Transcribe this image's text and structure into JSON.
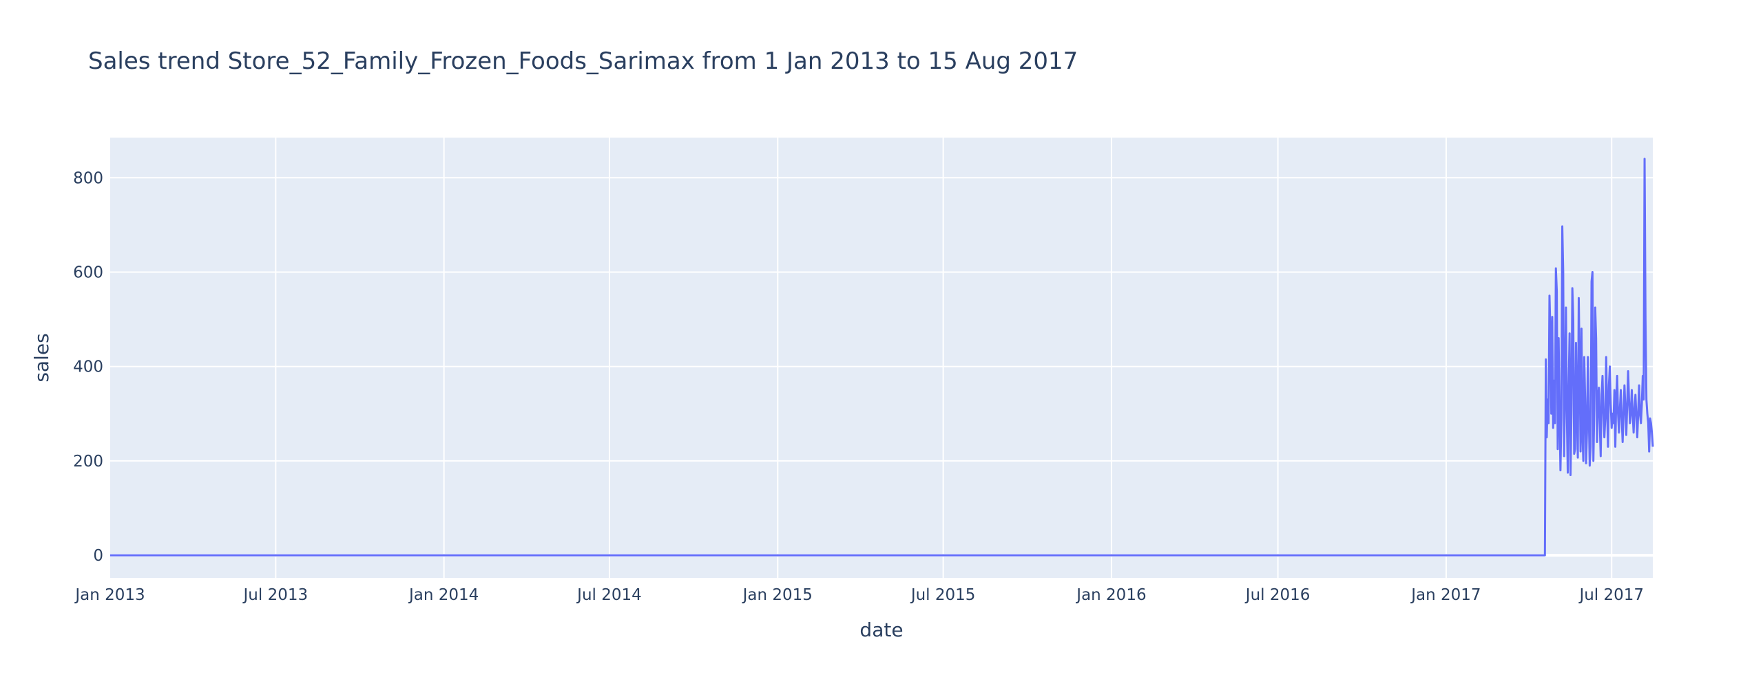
{
  "chart_data": {
    "type": "line",
    "title": "Sales trend Store_52_Family_Frozen_Foods_Sarimax from  1 Jan 2013 to 15 Aug 2017",
    "xlabel": "date",
    "ylabel": "sales",
    "x_range": [
      "2013-01-01",
      "2017-08-15"
    ],
    "ylim": [
      -48,
      885
    ],
    "y_ticks": [
      0,
      200,
      400,
      600,
      800
    ],
    "y_tick_labels": [
      "0",
      "200",
      "400",
      "600",
      "800"
    ],
    "x_ticks": [
      "2013-01-01",
      "2013-07-01",
      "2014-01-01",
      "2014-07-01",
      "2015-01-01",
      "2015-07-01",
      "2016-01-01",
      "2016-07-01",
      "2017-01-01",
      "2017-07-01"
    ],
    "x_tick_labels": [
      "Jan 2013",
      "Jul 2013",
      "Jan 2014",
      "Jul 2014",
      "Jan 2015",
      "Jul 2015",
      "Jan 2016",
      "Jul 2016",
      "Jan 2017",
      "Jul 2017"
    ],
    "grid": true,
    "line_color": "#636efa",
    "background_color": "#e5ecf6",
    "series": [
      {
        "x": [
          "2013-01-01",
          "2017-04-19",
          "2017-04-20",
          "2017-04-21",
          "2017-04-22",
          "2017-04-23",
          "2017-04-24",
          "2017-04-25",
          "2017-04-26",
          "2017-04-27",
          "2017-04-28",
          "2017-04-29",
          "2017-04-30",
          "2017-05-01",
          "2017-05-02",
          "2017-05-03",
          "2017-05-04",
          "2017-05-05",
          "2017-05-06",
          "2017-05-07",
          "2017-05-08",
          "2017-05-09",
          "2017-05-10",
          "2017-05-11",
          "2017-05-12",
          "2017-05-13",
          "2017-05-14",
          "2017-05-15",
          "2017-05-16",
          "2017-05-17",
          "2017-05-18",
          "2017-05-19",
          "2017-05-20",
          "2017-05-21",
          "2017-05-22",
          "2017-05-23",
          "2017-05-24",
          "2017-05-25",
          "2017-05-26",
          "2017-05-27",
          "2017-05-28",
          "2017-05-29",
          "2017-05-30",
          "2017-05-31",
          "2017-06-01",
          "2017-06-02",
          "2017-06-03",
          "2017-06-04",
          "2017-06-05",
          "2017-06-06",
          "2017-06-07",
          "2017-06-08",
          "2017-06-09",
          "2017-06-10",
          "2017-06-11",
          "2017-06-12",
          "2017-06-13",
          "2017-06-14",
          "2017-06-15",
          "2017-06-16",
          "2017-06-17",
          "2017-06-18",
          "2017-06-19",
          "2017-06-20",
          "2017-06-21",
          "2017-06-22",
          "2017-06-23",
          "2017-06-24",
          "2017-06-25",
          "2017-06-26",
          "2017-06-27",
          "2017-06-28",
          "2017-06-29",
          "2017-06-30",
          "2017-07-01",
          "2017-07-02",
          "2017-07-03",
          "2017-07-04",
          "2017-07-05",
          "2017-07-06",
          "2017-07-07",
          "2017-07-08",
          "2017-07-09",
          "2017-07-10",
          "2017-07-11",
          "2017-07-12",
          "2017-07-13",
          "2017-07-14",
          "2017-07-15",
          "2017-07-16",
          "2017-07-17",
          "2017-07-18",
          "2017-07-19",
          "2017-07-20",
          "2017-07-21",
          "2017-07-22",
          "2017-07-23",
          "2017-07-24",
          "2017-07-25",
          "2017-07-26",
          "2017-07-27",
          "2017-07-28",
          "2017-07-29",
          "2017-07-30",
          "2017-07-31",
          "2017-08-01",
          "2017-08-02",
          "2017-08-03",
          "2017-08-04",
          "2017-08-05",
          "2017-08-06",
          "2017-08-07",
          "2017-08-08",
          "2017-08-09",
          "2017-08-10",
          "2017-08-11",
          "2017-08-12",
          "2017-08-13",
          "2017-08-14",
          "2017-08-15"
        ],
        "y": [
          0,
          0,
          415,
          250,
          330,
          280,
          550,
          470,
          300,
          505,
          270,
          370,
          280,
          608,
          560,
          225,
          460,
          300,
          180,
          290,
          697,
          600,
          210,
          350,
          525,
          300,
          175,
          360,
          470,
          170,
          300,
          566,
          500,
          215,
          225,
          450,
          300,
          207,
          545,
          400,
          220,
          480,
          260,
          200,
          420,
          330,
          195,
          260,
          420,
          300,
          190,
          230,
          580,
          600,
          200,
          310,
          525,
          460,
          240,
          330,
          355,
          280,
          210,
          340,
          380,
          300,
          250,
          290,
          420,
          310,
          230,
          360,
          400,
          320,
          270,
          300,
          280,
          350,
          230,
          330,
          380,
          300,
          260,
          310,
          350,
          290,
          240,
          300,
          360,
          310,
          255,
          320,
          390,
          330,
          280,
          300,
          350,
          300,
          260,
          310,
          340,
          295,
          250,
          300,
          360,
          300,
          280,
          320,
          380,
          330,
          840,
          500,
          330,
          300,
          280,
          220,
          290,
          280,
          260,
          230
        ]
      }
    ]
  }
}
